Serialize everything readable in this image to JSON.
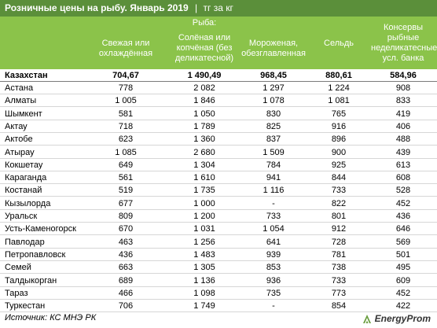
{
  "title": {
    "main": "Розничные цены на рыбу. Январь 2019",
    "separator": "|",
    "unit": "тг за кг"
  },
  "header": {
    "group_label": "Рыба:",
    "col1": [
      "Свежая или",
      "охлаждённая"
    ],
    "col2": [
      "Солёная или",
      "копчёная (без",
      "деликатесной)"
    ],
    "col3": [
      "Мороженая,",
      "обезглавленная"
    ],
    "col4": [
      "Сельдь"
    ],
    "col5": [
      "Консервы",
      "рыбные",
      "неделикатесные,",
      "усл. банка"
    ]
  },
  "total": {
    "name": "Казахстан",
    "values": [
      "704,67",
      "1 490,49",
      "968,45",
      "880,61",
      "584,96"
    ]
  },
  "rows": [
    {
      "name": "Астана",
      "values": [
        "778",
        "2 082",
        "1 297",
        "1 224",
        "908"
      ]
    },
    {
      "name": "Алматы",
      "values": [
        "1 005",
        "1 846",
        "1 078",
        "1 081",
        "833"
      ]
    },
    {
      "name": "Шымкент",
      "values": [
        "581",
        "1 050",
        "830",
        "765",
        "419"
      ]
    },
    {
      "name": "Актау",
      "values": [
        "718",
        "1 789",
        "825",
        "916",
        "406"
      ]
    },
    {
      "name": "Актобе",
      "values": [
        "623",
        "1 360",
        "837",
        "896",
        "488"
      ]
    },
    {
      "name": "Атырау",
      "values": [
        "1 085",
        "2 680",
        "1 509",
        "900",
        "439"
      ]
    },
    {
      "name": "Кокшетау",
      "values": [
        "649",
        "1 304",
        "784",
        "925",
        "613"
      ]
    },
    {
      "name": "Караганда",
      "values": [
        "561",
        "1 610",
        "941",
        "844",
        "608"
      ]
    },
    {
      "name": "Костанай",
      "values": [
        "519",
        "1 735",
        "1 116",
        "733",
        "528"
      ]
    },
    {
      "name": "Кызылорда",
      "values": [
        "677",
        "1 000",
        "-",
        "822",
        "452"
      ]
    },
    {
      "name": "Уральск",
      "values": [
        "809",
        "1 200",
        "733",
        "801",
        "436"
      ]
    },
    {
      "name": "Усть-Каменогорск",
      "values": [
        "670",
        "1 031",
        "1 054",
        "912",
        "646"
      ]
    },
    {
      "name": "Павлодар",
      "values": [
        "463",
        "1 256",
        "641",
        "728",
        "569"
      ]
    },
    {
      "name": "Петропавловск",
      "values": [
        "436",
        "1 483",
        "939",
        "781",
        "501"
      ]
    },
    {
      "name": "Семей",
      "values": [
        "663",
        "1 305",
        "853",
        "738",
        "495"
      ]
    },
    {
      "name": "Талдыкорган",
      "values": [
        "689",
        "1 136",
        "936",
        "733",
        "609"
      ]
    },
    {
      "name": "Тараз",
      "values": [
        "466",
        "1 098",
        "735",
        "773",
        "452"
      ]
    },
    {
      "name": "Туркестан",
      "values": [
        "706",
        "1 749",
        "-",
        "854",
        "422"
      ]
    }
  ],
  "footer": {
    "source": "Источник: КС МНЭ РК",
    "logo_text": "EnergyProm"
  },
  "colors": {
    "title_bg": "#5b8f3a",
    "header_bg": "#8bc34a",
    "header_text": "#ffffff"
  }
}
